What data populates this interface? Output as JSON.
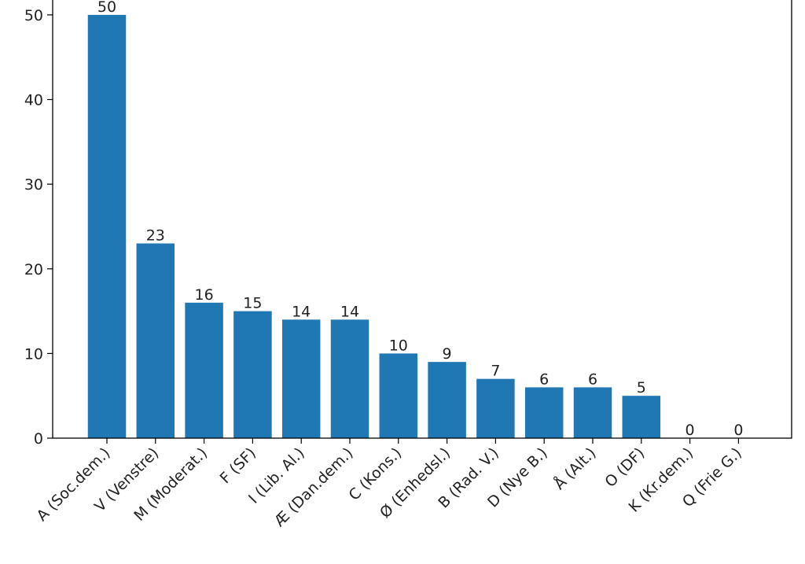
{
  "chart_data": {
    "type": "bar",
    "title": "",
    "xlabel": "",
    "ylabel": "",
    "categories": [
      "A (Soc.dem.)",
      "V (Venstre)",
      "M (Moderat.)",
      "F (SF)",
      "I (Lib. Al.)",
      "Æ (Dan.dem.)",
      "C (Kons.)",
      "Ø (Enhedsl.)",
      "B (Rad. V.)",
      "D (Nye B.)",
      "Å (Alt.)",
      "O (DF)",
      "K (Kr.dem.)",
      "Q (Frie G.)"
    ],
    "values": [
      50,
      23,
      16,
      15,
      14,
      14,
      10,
      9,
      7,
      6,
      6,
      5,
      0,
      0
    ],
    "data_labels": [
      "50",
      "23",
      "16",
      "15",
      "14",
      "14",
      "10",
      "9",
      "7",
      "6",
      "6",
      "5",
      "0",
      "0"
    ],
    "yticks": [
      0,
      10,
      20,
      30,
      40,
      50
    ],
    "ytick_labels": [
      "0",
      "10",
      "20",
      "30",
      "40",
      "50"
    ],
    "ylim": [
      0,
      52.5
    ],
    "grid": false,
    "bar_color": "#1f77b4",
    "x_tick_rotation_deg": 45
  }
}
